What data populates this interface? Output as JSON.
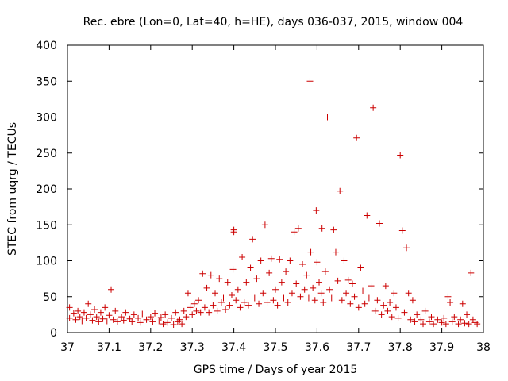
{
  "chart_data": {
    "type": "scatter",
    "title": "Rec. ebre (Lon=0, Lat=40, h=HE), days 036-037, 2015, window 004",
    "xlabel": "GPS time / Days of year 2015",
    "ylabel": "STEC from uqrg / TECUs",
    "xlim": [
      37,
      38
    ],
    "ylim": [
      0,
      400
    ],
    "x_ticks": [
      37,
      37.1,
      37.2,
      37.3,
      37.4,
      37.5,
      37.6,
      37.7,
      37.8,
      37.9,
      38
    ],
    "x_tick_labels": [
      "37",
      "37.1",
      "37.2",
      "37.3",
      "37.4",
      "37.5",
      "37.6",
      "37.7",
      "37.8",
      "37.9",
      "38"
    ],
    "y_ticks": [
      0,
      50,
      100,
      150,
      200,
      250,
      300,
      350,
      400
    ],
    "y_tick_labels": [
      "0",
      "50",
      "100",
      "150",
      "200",
      "250",
      "300",
      "350",
      "400"
    ],
    "marker": "+",
    "color": "#cc0000",
    "series": [
      {
        "name": "STEC",
        "points": [
          [
            37.005,
            35
          ],
          [
            37.005,
            20
          ],
          [
            37.015,
            27
          ],
          [
            37.02,
            18
          ],
          [
            37.025,
            30
          ],
          [
            37.03,
            22
          ],
          [
            37.035,
            16
          ],
          [
            37.04,
            28
          ],
          [
            37.045,
            20
          ],
          [
            37.05,
            40
          ],
          [
            37.055,
            25
          ],
          [
            37.06,
            17
          ],
          [
            37.065,
            32
          ],
          [
            37.07,
            22
          ],
          [
            37.075,
            15
          ],
          [
            37.08,
            28
          ],
          [
            37.085,
            19
          ],
          [
            37.09,
            35
          ],
          [
            37.095,
            16
          ],
          [
            37.1,
            24
          ],
          [
            37.105,
            60
          ],
          [
            37.11,
            18
          ],
          [
            37.115,
            30
          ],
          [
            37.12,
            15
          ],
          [
            37.13,
            22
          ],
          [
            37.135,
            17
          ],
          [
            37.14,
            28
          ],
          [
            37.15,
            19
          ],
          [
            37.155,
            15
          ],
          [
            37.16,
            25
          ],
          [
            37.17,
            20
          ],
          [
            37.175,
            14
          ],
          [
            37.18,
            26
          ],
          [
            37.19,
            18
          ],
          [
            37.2,
            22
          ],
          [
            37.205,
            15
          ],
          [
            37.21,
            27
          ],
          [
            37.22,
            16
          ],
          [
            37.225,
            21
          ],
          [
            37.23,
            12
          ],
          [
            37.235,
            25
          ],
          [
            37.24,
            14
          ],
          [
            37.25,
            20
          ],
          [
            37.255,
            11
          ],
          [
            37.26,
            28
          ],
          [
            37.265,
            15
          ],
          [
            37.27,
            18
          ],
          [
            37.275,
            12
          ],
          [
            37.28,
            30
          ],
          [
            37.285,
            22
          ],
          [
            37.29,
            55
          ],
          [
            37.295,
            35
          ],
          [
            37.3,
            25
          ],
          [
            37.305,
            40
          ],
          [
            37.31,
            30
          ],
          [
            37.315,
            45
          ],
          [
            37.32,
            28
          ],
          [
            37.325,
            82
          ],
          [
            37.33,
            35
          ],
          [
            37.335,
            62
          ],
          [
            37.34,
            28
          ],
          [
            37.345,
            80
          ],
          [
            37.35,
            38
          ],
          [
            37.355,
            55
          ],
          [
            37.36,
            30
          ],
          [
            37.365,
            75
          ],
          [
            37.37,
            42
          ],
          [
            37.375,
            48
          ],
          [
            37.38,
            32
          ],
          [
            37.385,
            70
          ],
          [
            37.39,
            38
          ],
          [
            37.395,
            52
          ],
          [
            37.398,
            88
          ],
          [
            37.4,
            140
          ],
          [
            37.4,
            143
          ],
          [
            37.405,
            45
          ],
          [
            37.41,
            60
          ],
          [
            37.415,
            35
          ],
          [
            37.42,
            105
          ],
          [
            37.425,
            42
          ],
          [
            37.43,
            70
          ],
          [
            37.435,
            38
          ],
          [
            37.44,
            90
          ],
          [
            37.445,
            130
          ],
          [
            37.45,
            48
          ],
          [
            37.455,
            75
          ],
          [
            37.46,
            40
          ],
          [
            37.465,
            100
          ],
          [
            37.47,
            55
          ],
          [
            37.475,
            150
          ],
          [
            37.48,
            42
          ],
          [
            37.485,
            83
          ],
          [
            37.49,
            103
          ],
          [
            37.495,
            45
          ],
          [
            37.5,
            60
          ],
          [
            37.505,
            38
          ],
          [
            37.51,
            102
          ],
          [
            37.515,
            70
          ],
          [
            37.52,
            48
          ],
          [
            37.525,
            85
          ],
          [
            37.53,
            42
          ],
          [
            37.535,
            100
          ],
          [
            37.54,
            55
          ],
          [
            37.545,
            140
          ],
          [
            37.55,
            68
          ],
          [
            37.555,
            145
          ],
          [
            37.56,
            50
          ],
          [
            37.565,
            95
          ],
          [
            37.57,
            60
          ],
          [
            37.575,
            80
          ],
          [
            37.58,
            48
          ],
          [
            37.583,
            350
          ],
          [
            37.585,
            112
          ],
          [
            37.59,
            62
          ],
          [
            37.595,
            45
          ],
          [
            37.598,
            170
          ],
          [
            37.6,
            98
          ],
          [
            37.605,
            70
          ],
          [
            37.61,
            55
          ],
          [
            37.612,
            145
          ],
          [
            37.615,
            42
          ],
          [
            37.62,
            85
          ],
          [
            37.625,
            300
          ],
          [
            37.63,
            60
          ],
          [
            37.635,
            48
          ],
          [
            37.64,
            143
          ],
          [
            37.645,
            112
          ],
          [
            37.65,
            72
          ],
          [
            37.655,
            197
          ],
          [
            37.66,
            45
          ],
          [
            37.665,
            100
          ],
          [
            37.67,
            55
          ],
          [
            37.675,
            73
          ],
          [
            37.68,
            40
          ],
          [
            37.685,
            68
          ],
          [
            37.69,
            50
          ],
          [
            37.695,
            271
          ],
          [
            37.7,
            35
          ],
          [
            37.705,
            90
          ],
          [
            37.71,
            58
          ],
          [
            37.715,
            40
          ],
          [
            37.72,
            163
          ],
          [
            37.725,
            48
          ],
          [
            37.73,
            65
          ],
          [
            37.735,
            313
          ],
          [
            37.74,
            30
          ],
          [
            37.745,
            45
          ],
          [
            37.75,
            152
          ],
          [
            37.755,
            25
          ],
          [
            37.76,
            38
          ],
          [
            37.765,
            65
          ],
          [
            37.77,
            30
          ],
          [
            37.775,
            42
          ],
          [
            37.78,
            22
          ],
          [
            37.785,
            55
          ],
          [
            37.79,
            35
          ],
          [
            37.795,
            20
          ],
          [
            37.8,
            247
          ],
          [
            37.805,
            142
          ],
          [
            37.81,
            28
          ],
          [
            37.815,
            118
          ],
          [
            37.82,
            55
          ],
          [
            37.825,
            18
          ],
          [
            37.83,
            45
          ],
          [
            37.835,
            15
          ],
          [
            37.84,
            25
          ],
          [
            37.85,
            18
          ],
          [
            37.855,
            12
          ],
          [
            37.86,
            30
          ],
          [
            37.87,
            15
          ],
          [
            37.875,
            22
          ],
          [
            37.88,
            12
          ],
          [
            37.89,
            18
          ],
          [
            37.9,
            14
          ],
          [
            37.905,
            20
          ],
          [
            37.91,
            12
          ],
          [
            37.915,
            50
          ],
          [
            37.92,
            42
          ],
          [
            37.925,
            15
          ],
          [
            37.93,
            22
          ],
          [
            37.94,
            12
          ],
          [
            37.945,
            18
          ],
          [
            37.95,
            40
          ],
          [
            37.955,
            13
          ],
          [
            37.96,
            25
          ],
          [
            37.965,
            12
          ],
          [
            37.97,
            83
          ],
          [
            37.975,
            18
          ],
          [
            37.98,
            14
          ],
          [
            37.985,
            12
          ]
        ]
      }
    ]
  }
}
